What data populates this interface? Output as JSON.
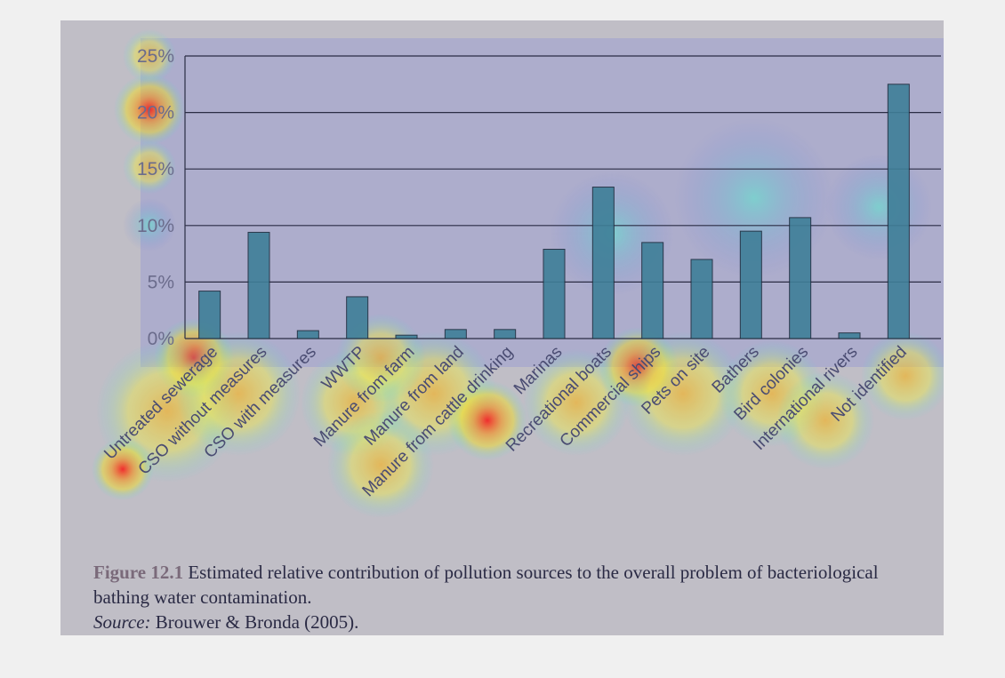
{
  "chart_data": {
    "type": "bar",
    "categories": [
      "Untreated sewerage",
      "CSO without measures",
      "CSO with measures",
      "WWTP",
      "Manure from farm",
      "Manure from land",
      "Manure from cattle drinking",
      "Marinas",
      "Recreational boats",
      "Commercial ships",
      "Pets on site",
      "Bathers",
      "Bird colonies",
      "International rivers",
      "Not identified"
    ],
    "values": [
      4.2,
      9.4,
      0.7,
      3.7,
      0.3,
      0.8,
      0.8,
      7.9,
      13.4,
      8.5,
      7.0,
      9.5,
      10.7,
      0.5,
      22.5
    ],
    "ylim": [
      0,
      25
    ],
    "yticks": [
      "0%",
      "5%",
      "10%",
      "15%",
      "20%",
      "25%"
    ],
    "ytick_values": [
      0,
      5,
      10,
      15,
      20,
      25
    ],
    "grid": true,
    "colors": {
      "bar_fill": "#3f7f98",
      "bar_stroke": "#1d2b3c",
      "grid": "#2b2d44",
      "background": "#c0bec6"
    }
  },
  "caption": {
    "figure_label": "Figure 12.1",
    "text": "Estimated relative contribution of pollution sources to the overall problem of bacteriological bathing water contamination.",
    "source_label": "Source:",
    "source_text": "Brouwer & Bronda (2005)."
  }
}
